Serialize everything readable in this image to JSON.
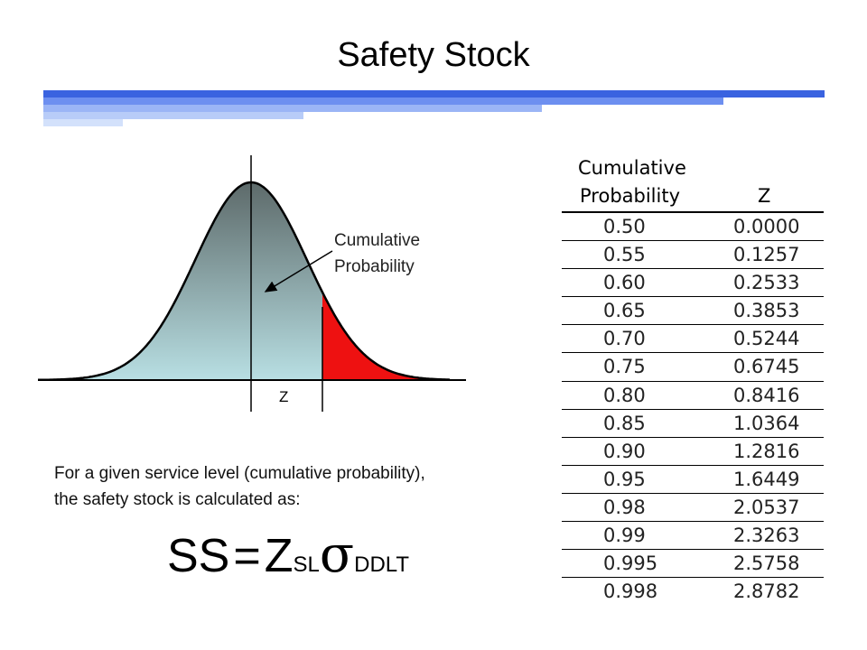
{
  "slide": {
    "title": "Safety Stock"
  },
  "diagram": {
    "annotation_line1": "Cumulative",
    "annotation_line2": "Probability",
    "z_marker": "Z",
    "fill_gradient_top": "#5d6a6a",
    "fill_gradient_bottom": "#b8dfe3",
    "tail_color": "#ee1111"
  },
  "description": {
    "line1": "For a given service level (cumulative probability),",
    "line2": "the safety stock is calculated as:"
  },
  "formula": {
    "lhs": "SS",
    "equals": "=",
    "z": "Z",
    "z_sub": "SL",
    "sigma": "σ",
    "sigma_sub": "DDLT"
  },
  "table": {
    "header_prob_line1": "Cumulative",
    "header_prob_line2": "Probability",
    "header_z": "Z",
    "rows": [
      {
        "p": "0.50",
        "z": "0.0000"
      },
      {
        "p": "0.55",
        "z": "0.1257"
      },
      {
        "p": "0.60",
        "z": "0.2533"
      },
      {
        "p": "0.65",
        "z": "0.3853"
      },
      {
        "p": "0.70",
        "z": "0.5244"
      },
      {
        "p": "0.75",
        "z": "0.6745"
      },
      {
        "p": "0.80",
        "z": "0.8416"
      },
      {
        "p": "0.85",
        "z": "1.0364"
      },
      {
        "p": "0.90",
        "z": "1.2816"
      },
      {
        "p": "0.95",
        "z": "1.6449"
      },
      {
        "p": "0.98",
        "z": "2.0537"
      },
      {
        "p": "0.99",
        "z": "2.3263"
      },
      {
        "p": "0.995",
        "z": "2.5758"
      },
      {
        "p": "0.998",
        "z": "2.8782"
      }
    ]
  }
}
